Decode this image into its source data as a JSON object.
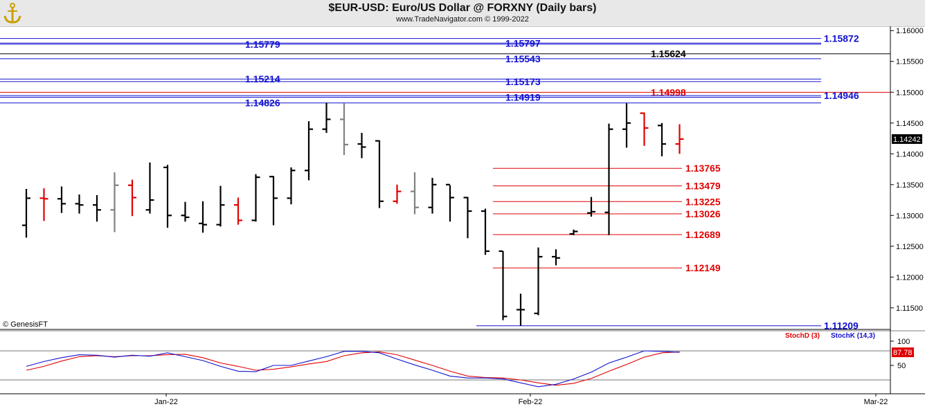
{
  "header": {
    "title": "$EUR-USD:  Euro/US Dollar @ FORXNY  (Daily bars)",
    "subtitle": "www.TradeNavigator.com © 1999-2022"
  },
  "watermark": "© GenesisFT",
  "price_badge": "1.14242",
  "stoch_badge": "87.78",
  "colors": {
    "up": "#000000",
    "down": "#e00000",
    "neutral": "#808080",
    "blue_level": "#1010d0",
    "red_level": "#e00000",
    "stoch_k": "#1010d0",
    "stoch_d": "#e00000",
    "header_bg": "#e8e8e8"
  },
  "chart_data": [
    {
      "type": "ohlc",
      "title": "$EUR-USD:  Euro/US Dollar @ FORXNY  (Daily bars)",
      "ylim": [
        1.1115,
        1.1607
      ],
      "y_ticks": [
        "1.16000",
        "1.15500",
        "1.15000",
        "1.14500",
        "1.14000",
        "1.13500",
        "1.13000",
        "1.12500",
        "1.12000",
        "1.11500"
      ],
      "x_ticks": [
        "Jan-22",
        "Feb-22",
        "Mar-22"
      ],
      "bars": [
        {
          "o": 1.1284,
          "h": 1.1343,
          "l": 1.1264,
          "c": 1.1328,
          "color": "up"
        },
        {
          "o": 1.1328,
          "h": 1.1344,
          "l": 1.1291,
          "c": 1.1327,
          "color": "down"
        },
        {
          "o": 1.1327,
          "h": 1.1347,
          "l": 1.1304,
          "c": 1.1319,
          "color": "up"
        },
        {
          "o": 1.1319,
          "h": 1.1334,
          "l": 1.1303,
          "c": 1.1317,
          "color": "up"
        },
        {
          "o": 1.1317,
          "h": 1.1333,
          "l": 1.129,
          "c": 1.1309,
          "color": "up"
        },
        {
          "o": 1.1309,
          "h": 1.137,
          "l": 1.1273,
          "c": 1.1349,
          "color": "neutral"
        },
        {
          "o": 1.1349,
          "h": 1.1358,
          "l": 1.1299,
          "c": 1.1329,
          "color": "down"
        },
        {
          "o": 1.1309,
          "h": 1.1386,
          "l": 1.1303,
          "c": 1.1325,
          "color": "up"
        },
        {
          "o": 1.1378,
          "h": 1.1382,
          "l": 1.128,
          "c": 1.13,
          "color": "up"
        },
        {
          "o": 1.13,
          "h": 1.1322,
          "l": 1.129,
          "c": 1.1297,
          "color": "up"
        },
        {
          "o": 1.1287,
          "h": 1.1323,
          "l": 1.1272,
          "c": 1.1285,
          "color": "up"
        },
        {
          "o": 1.1285,
          "h": 1.1348,
          "l": 1.1282,
          "c": 1.1317,
          "color": "up"
        },
        {
          "o": 1.1317,
          "h": 1.1329,
          "l": 1.1285,
          "c": 1.1292,
          "color": "down"
        },
        {
          "o": 1.1292,
          "h": 1.1367,
          "l": 1.129,
          "c": 1.1362,
          "color": "up"
        },
        {
          "o": 1.1363,
          "h": 1.1364,
          "l": 1.1284,
          "c": 1.1328,
          "color": "up"
        },
        {
          "o": 1.1328,
          "h": 1.1378,
          "l": 1.1318,
          "c": 1.1373,
          "color": "up"
        },
        {
          "o": 1.1373,
          "h": 1.1453,
          "l": 1.1357,
          "c": 1.144,
          "color": "up"
        },
        {
          "o": 1.144,
          "h": 1.1483,
          "l": 1.1434,
          "c": 1.1456,
          "color": "up"
        },
        {
          "o": 1.1456,
          "h": 1.1482,
          "l": 1.1398,
          "c": 1.1415,
          "color": "neutral"
        },
        {
          "o": 1.1416,
          "h": 1.1434,
          "l": 1.1393,
          "c": 1.1411,
          "color": "up"
        },
        {
          "o": 1.1421,
          "h": 1.1422,
          "l": 1.1312,
          "c": 1.1323,
          "color": "up"
        },
        {
          "o": 1.1323,
          "h": 1.135,
          "l": 1.1319,
          "c": 1.1339,
          "color": "down"
        },
        {
          "o": 1.1339,
          "h": 1.137,
          "l": 1.1302,
          "c": 1.1313,
          "color": "neutral"
        },
        {
          "o": 1.1313,
          "h": 1.1361,
          "l": 1.1303,
          "c": 1.135,
          "color": "up"
        },
        {
          "o": 1.135,
          "h": 1.1349,
          "l": 1.129,
          "c": 1.1329,
          "color": "up"
        },
        {
          "o": 1.1329,
          "h": 1.133,
          "l": 1.1263,
          "c": 1.1307,
          "color": "up"
        },
        {
          "o": 1.1307,
          "h": 1.1311,
          "l": 1.1236,
          "c": 1.1242,
          "color": "up"
        },
        {
          "o": 1.1242,
          "h": 1.1242,
          "l": 1.113,
          "c": 1.1136,
          "color": "up"
        },
        {
          "o": 1.1147,
          "h": 1.1173,
          "l": 1.1121,
          "c": 1.1147,
          "color": "up"
        },
        {
          "o": 1.1141,
          "h": 1.1248,
          "l": 1.1138,
          "c": 1.1233,
          "color": "up"
        },
        {
          "o": 1.1233,
          "h": 1.1245,
          "l": 1.1219,
          "c": 1.1231,
          "color": "up"
        },
        {
          "o": 1.127,
          "h": 1.1277,
          "l": 1.1268,
          "c": 1.1274,
          "color": "up"
        },
        {
          "o": 1.1304,
          "h": 1.133,
          "l": 1.1298,
          "c": 1.1306,
          "color": "up"
        },
        {
          "o": 1.1305,
          "h": 1.1449,
          "l": 1.1268,
          "c": 1.144,
          "color": "up"
        },
        {
          "o": 1.144,
          "h": 1.1482,
          "l": 1.141,
          "c": 1.145,
          "color": "up"
        },
        {
          "o": 1.1466,
          "h": 1.1467,
          "l": 1.1413,
          "c": 1.1442,
          "color": "down"
        },
        {
          "o": 1.1446,
          "h": 1.145,
          "l": 1.1396,
          "c": 1.1416,
          "color": "up"
        },
        {
          "o": 1.1416,
          "h": 1.1448,
          "l": 1.14,
          "c": 1.1424,
          "color": "down"
        }
      ],
      "levels": [
        {
          "value": 1.15872,
          "label": "1.15872",
          "color": "blue",
          "label_side": "right",
          "start": "all"
        },
        {
          "value": 1.15797,
          "label": "1.15797",
          "color": "blue",
          "label_side": "mid",
          "start": "all"
        },
        {
          "value": 1.15779,
          "label": "1.15779",
          "color": "blue",
          "label_side": "left",
          "start": "all"
        },
        {
          "value": 1.15624,
          "label": "1.15624",
          "color": "black",
          "label_side": "right",
          "start": "all"
        },
        {
          "value": 1.15543,
          "label": "1.15543",
          "color": "blue",
          "label_side": "mid",
          "start": "all"
        },
        {
          "value": 1.15214,
          "label": "1.15214",
          "color": "blue",
          "label_side": "left",
          "start": "all"
        },
        {
          "value": 1.15173,
          "label": "1.15173",
          "color": "blue",
          "label_side": "mid",
          "start": "all"
        },
        {
          "value": 1.14998,
          "label": "1.14998",
          "color": "red",
          "label_side": "right",
          "start": "all"
        },
        {
          "value": 1.14946,
          "label": "1.14946",
          "color": "blue",
          "label_side": "right",
          "start": "all"
        },
        {
          "value": 1.14919,
          "label": "1.14919",
          "color": "blue",
          "label_side": "mid",
          "start": "all"
        },
        {
          "value": 1.14826,
          "label": "1.14826",
          "color": "blue",
          "label_side": "left",
          "start": "all"
        },
        {
          "value": 1.13765,
          "label": "1.13765",
          "color": "red",
          "label_side": "right",
          "start": "feb"
        },
        {
          "value": 1.13479,
          "label": "1.13479",
          "color": "red",
          "label_side": "right",
          "start": "feb"
        },
        {
          "value": 1.13225,
          "label": "1.13225",
          "color": "red",
          "label_side": "right",
          "start": "feb"
        },
        {
          "value": 1.13026,
          "label": "1.13026",
          "color": "red",
          "label_side": "right",
          "start": "feb"
        },
        {
          "value": 1.12689,
          "label": "1.12689",
          "color": "red",
          "label_side": "right",
          "start": "feb"
        },
        {
          "value": 1.12149,
          "label": "1.12149",
          "color": "red",
          "label_side": "right",
          "start": "feb"
        },
        {
          "value": 1.11209,
          "label": "1.11209",
          "color": "blue",
          "label_side": "right",
          "start": "low"
        }
      ]
    },
    {
      "type": "line",
      "title": "",
      "ylim": [
        0,
        100
      ],
      "y_ticks": [
        "100",
        "50"
      ],
      "legend": [
        "StochD (3)",
        "StochK (14,3)"
      ],
      "reference_lines": [
        80,
        20
      ],
      "series": [
        {
          "name": "StochK (14,3)",
          "color": "blue",
          "values": [
            48,
            58,
            66,
            72,
            71,
            67,
            71,
            69,
            76,
            68,
            60,
            48,
            38,
            37,
            50,
            50,
            59,
            68,
            79,
            79,
            76,
            63,
            51,
            40,
            28,
            24,
            24,
            22,
            14,
            6,
            11,
            22,
            36,
            55,
            67,
            80,
            79,
            77
          ]
        },
        {
          "name": "StochD (3)",
          "color": "red",
          "values": [
            40,
            48,
            59,
            68,
            70,
            68,
            70,
            70,
            72,
            73,
            66,
            55,
            48,
            40,
            42,
            47,
            53,
            58,
            70,
            76,
            78,
            72,
            61,
            50,
            38,
            28,
            25,
            24,
            20,
            14,
            9,
            13,
            23,
            38,
            52,
            67,
            76,
            78
          ]
        }
      ]
    }
  ]
}
